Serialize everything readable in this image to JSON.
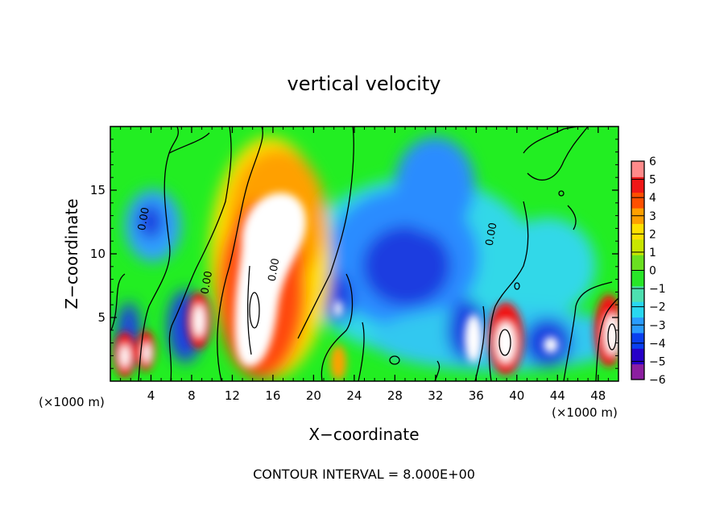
{
  "chart_data": {
    "type": "heatmap",
    "title": "vertical velocity",
    "xlabel": "X−coordinate",
    "ylabel": "Z−coordinate",
    "x_unit": "(×1000 m)",
    "x_unit_right": "(×1000 m)",
    "footer": "CONTOUR INTERVAL = 8.000E+00",
    "xlim": [
      0,
      50
    ],
    "ylim": [
      0,
      20
    ],
    "x_ticks": [
      4,
      8,
      12,
      16,
      20,
      24,
      28,
      32,
      36,
      40,
      44,
      48
    ],
    "y_ticks": [
      5,
      10,
      15
    ],
    "colorbar": {
      "range": [
        -6,
        6
      ],
      "ticks": [
        6,
        5,
        4,
        3,
        2,
        1,
        0,
        -1,
        -2,
        -3,
        -4,
        -5,
        -6
      ],
      "tick_labels": [
        "6",
        "5",
        "4",
        "3",
        "2",
        "1",
        "0",
        "−1",
        "−2",
        "−3",
        "−4",
        "−5",
        "−6"
      ],
      "colors": [
        "#8c1fa0",
        "#2600c8",
        "#0a40f0",
        "#2a9cff",
        "#29d8f0",
        "#4de0b0",
        "#28e628",
        "#6ae020",
        "#c8e600",
        "#ffe000",
        "#ffa000",
        "#ff5000",
        "#f01818",
        "#ff8a8a"
      ]
    },
    "contour_labels": [
      {
        "text": "0.00",
        "x": 3.6,
        "y": 12.7,
        "rotation": -80
      },
      {
        "text": "0.00",
        "x": 9.8,
        "y": 7.7,
        "rotation": -80
      },
      {
        "text": "0.00",
        "x": 16.4,
        "y": 8.7,
        "rotation": -80
      },
      {
        "text": "0.00",
        "x": 37.8,
        "y": 11.5,
        "rotation": -80
      }
    ],
    "features": [
      {
        "kind": "updraft",
        "x": 14.8,
        "z": 10.0,
        "w_max": 6,
        "note": "large strong updraft core"
      },
      {
        "kind": "updraft",
        "x": 2.3,
        "z": 2.5,
        "w_max": 6
      },
      {
        "kind": "updraft",
        "x": 8.5,
        "z": 4.7,
        "w_max": 6
      },
      {
        "kind": "updraft",
        "x": 38.9,
        "z": 3.0,
        "w_max": 6
      },
      {
        "kind": "updraft",
        "x": 47.8,
        "z": 3.2,
        "w_max": 6
      },
      {
        "kind": "updraft",
        "x": 35.2,
        "z": 3.5,
        "w_max": 6
      },
      {
        "kind": "downdraft",
        "x": 30.0,
        "z": 9.5,
        "w_min": -5
      },
      {
        "kind": "downdraft",
        "x": 4.0,
        "z": 12.0,
        "w_min": -4
      },
      {
        "kind": "downdraft",
        "x": 7.8,
        "z": 4.0,
        "w_min": -5
      },
      {
        "kind": "downdraft",
        "x": 41.5,
        "z": 3.0,
        "w_min": -5
      }
    ]
  }
}
